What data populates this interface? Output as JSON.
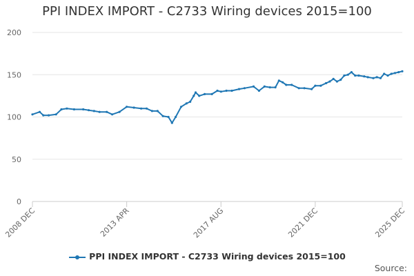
{
  "chart_data": {
    "type": "line",
    "title": "PPI INDEX IMPORT - C2733 Wiring devices 2015=100",
    "xlabel": "",
    "ylabel": "",
    "ylim": [
      0,
      200
    ],
    "yticks": [
      0,
      50,
      100,
      150,
      200
    ],
    "xtick_labels": [
      "2008 DEC",
      "2013 APR",
      "2017 AUG",
      "2021 DEC",
      "2025 DEC"
    ],
    "grid": true,
    "legend_position": "bottom",
    "series": [
      {
        "name": "PPI INDEX IMPORT - C2733 Wiring devices 2015=100",
        "color": "#1f77b4",
        "points": [
          [
            "2008 DEC",
            103
          ],
          [
            "2009 APR",
            106
          ],
          [
            "2009 JUN",
            102
          ],
          [
            "2009 SEP",
            102
          ],
          [
            "2010 JAN",
            103
          ],
          [
            "2010 APR",
            109
          ],
          [
            "2010 JUL",
            110
          ],
          [
            "2010 NOV",
            109
          ],
          [
            "2011 APR",
            109
          ],
          [
            "2011 JUL",
            108
          ],
          [
            "2011 OCT",
            107
          ],
          [
            "2012 JAN",
            106
          ],
          [
            "2012 MAY",
            106
          ],
          [
            "2012 AUG",
            103
          ],
          [
            "2012 DEC",
            106
          ],
          [
            "2013 APR",
            112
          ],
          [
            "2013 AUG",
            111
          ],
          [
            "2013 DEC",
            110
          ],
          [
            "2014 MAR",
            110
          ],
          [
            "2014 JUN",
            107
          ],
          [
            "2014 SEP",
            107
          ],
          [
            "2014 DEC",
            101
          ],
          [
            "2015 MAR",
            100
          ],
          [
            "2015 MAY",
            93
          ],
          [
            "2015 JUL",
            100
          ],
          [
            "2015 OCT",
            112
          ],
          [
            "2016 JAN",
            116
          ],
          [
            "2016 MAR",
            118
          ],
          [
            "2016 MAY",
            125
          ],
          [
            "2016 JUN",
            129
          ],
          [
            "2016 AUG",
            125
          ],
          [
            "2016 NOV",
            127
          ],
          [
            "2017 MAR",
            127
          ],
          [
            "2017 JUN",
            131
          ],
          [
            "2017 AUG",
            130
          ],
          [
            "2017 NOV",
            131
          ],
          [
            "2018 FEB",
            131
          ],
          [
            "2018 JUN",
            133
          ],
          [
            "2018 SEP",
            134
          ],
          [
            "2019 FEB",
            136
          ],
          [
            "2019 MAY",
            131
          ],
          [
            "2019 AUG",
            136
          ],
          [
            "2019 NOV",
            135
          ],
          [
            "2020 FEB",
            135
          ],
          [
            "2020 APR",
            143
          ],
          [
            "2020 JUN",
            141
          ],
          [
            "2020 AUG",
            138
          ],
          [
            "2020 NOV",
            138
          ],
          [
            "2021 MAR",
            134
          ],
          [
            "2021 JUN",
            134
          ],
          [
            "2021 OCT",
            133
          ],
          [
            "2021 DEC",
            137
          ],
          [
            "2022 MAR",
            137
          ],
          [
            "2022 JUN",
            140
          ],
          [
            "2022 AUG",
            142
          ],
          [
            "2022 OCT",
            145
          ],
          [
            "2022 DEC",
            142
          ],
          [
            "2023 FEB",
            144
          ],
          [
            "2023 APR",
            149
          ],
          [
            "2023 JUN",
            150
          ],
          [
            "2023 AUG",
            153
          ],
          [
            "2023 OCT",
            149
          ],
          [
            "2023 DEC",
            149
          ],
          [
            "2024 MAR",
            148
          ],
          [
            "2024 MAY",
            147
          ],
          [
            "2024 AUG",
            146
          ],
          [
            "2024 OCT",
            147
          ],
          [
            "2024 DEC",
            146
          ],
          [
            "2025 FEB",
            151
          ],
          [
            "2025 APR",
            149
          ],
          [
            "2025 JUN",
            151
          ],
          [
            "2025 AUG",
            152
          ],
          [
            "2025 OCT",
            153
          ],
          [
            "2025 DEC",
            154
          ]
        ]
      }
    ]
  },
  "source_label": "Source:"
}
